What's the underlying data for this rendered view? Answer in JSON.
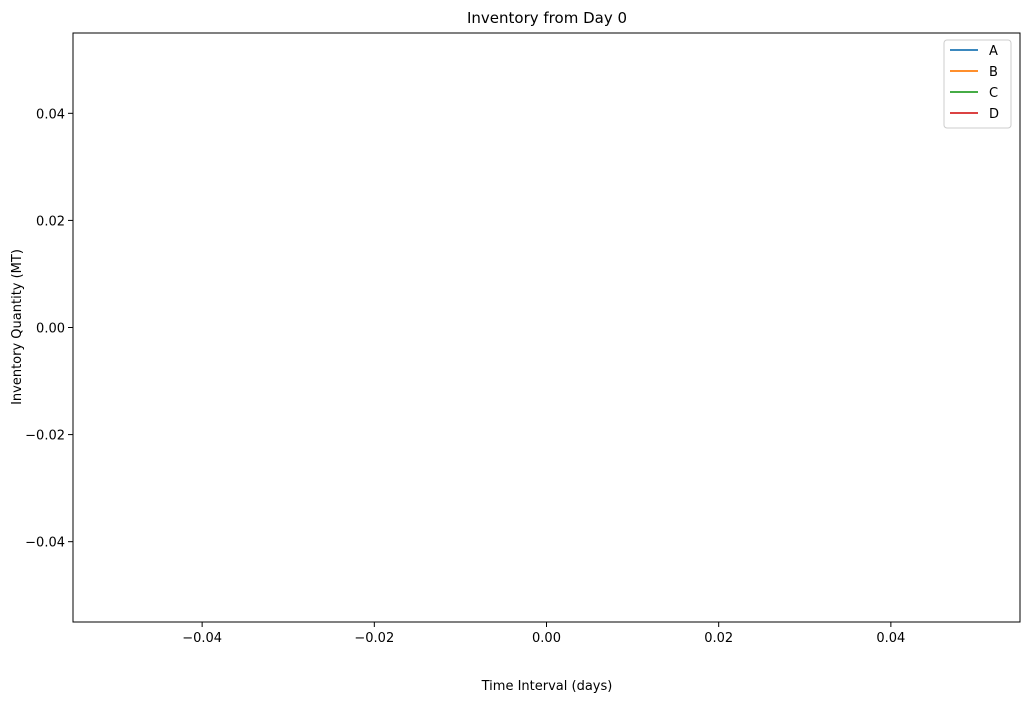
{
  "chart_data": {
    "type": "line",
    "title": "Inventory from Day 0",
    "xlabel": "Time Interval (days)",
    "ylabel": "Inventory Quantity (MT)",
    "xlim": [
      -0.055,
      0.055
    ],
    "ylim": [
      -0.055,
      0.055
    ],
    "x_ticks": [
      -0.04,
      -0.02,
      0.0,
      0.02,
      0.04
    ],
    "x_tick_labels": [
      "−0.04",
      "−0.02",
      "0.00",
      "0.02",
      "0.04"
    ],
    "y_ticks": [
      -0.04,
      -0.02,
      0.0,
      0.02,
      0.04
    ],
    "y_tick_labels": [
      "−0.04",
      "−0.02",
      "0.00",
      "0.02",
      "0.04"
    ],
    "grid": false,
    "legend_position": "top-right",
    "series": [
      {
        "name": "A",
        "color": "#1f77b4",
        "x": [],
        "y": []
      },
      {
        "name": "B",
        "color": "#ff7f0e",
        "x": [],
        "y": []
      },
      {
        "name": "C",
        "color": "#2ca02c",
        "x": [],
        "y": []
      },
      {
        "name": "D",
        "color": "#d62728",
        "x": [],
        "y": []
      }
    ]
  }
}
